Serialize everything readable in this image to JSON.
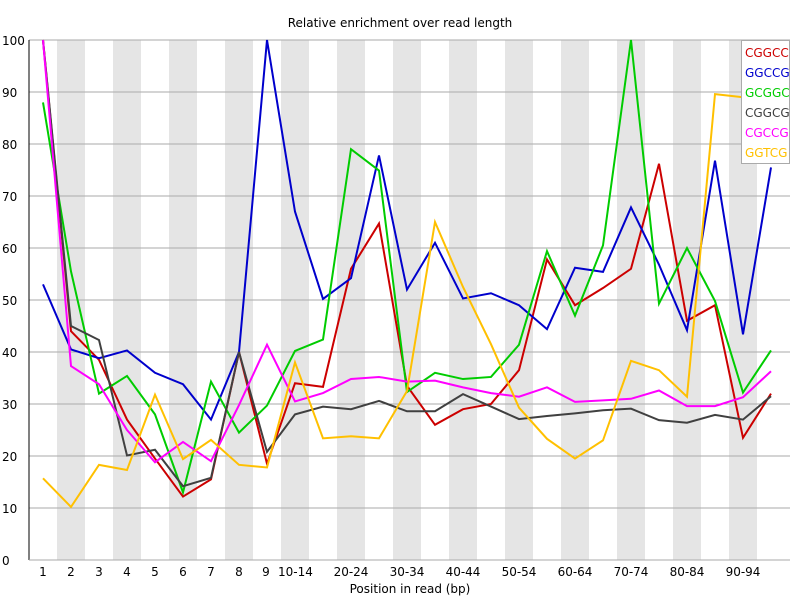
{
  "chart_data": {
    "type": "line",
    "title": "Relative enrichment over read length",
    "xlabel": "Position in read (bp)",
    "ylabel": "",
    "ylim": [
      0,
      100
    ],
    "yticks": [
      0,
      10,
      20,
      30,
      40,
      50,
      60,
      70,
      80,
      90,
      100
    ],
    "grid": true,
    "legend_position": "top-right",
    "categories": [
      "1",
      "2",
      "3",
      "4",
      "5",
      "6",
      "7",
      "8",
      "9",
      "10-14",
      "15-19",
      "20-24",
      "25-29",
      "30-34",
      "35-39",
      "40-44",
      "45-49",
      "50-54",
      "55-59",
      "60-64",
      "65-69",
      "70-74",
      "75-79",
      "80-84",
      "85-89",
      "90-94",
      "95-99"
    ],
    "visible_tick_labels": [
      "1",
      "2",
      "3",
      "4",
      "5",
      "6",
      "7",
      "8",
      "9",
      "10-14",
      "20-24",
      "30-34",
      "40-44",
      "50-54",
      "60-64",
      "70-74",
      "80-84",
      "90-94"
    ],
    "series": [
      {
        "name": "CGGCC",
        "color": "#cc0000",
        "values": [
          100,
          44,
          38.5,
          27,
          19.5,
          12.2,
          15.5,
          40,
          18.5,
          34,
          33.3,
          56,
          64.7,
          33.5,
          26,
          29,
          30,
          36.5,
          57.8,
          49,
          52.3,
          56,
          76.2,
          46,
          49,
          23.5,
          32
        ]
      },
      {
        "name": "GGCCG",
        "color": "#0000cc",
        "values": [
          53,
          40.5,
          38.8,
          40.3,
          36,
          33.8,
          27,
          40,
          100,
          67,
          50.2,
          54.2,
          77.8,
          52,
          61,
          50.3,
          51.3,
          49,
          44.4,
          56.2,
          55.4,
          67.8,
          56.8,
          44.2,
          76.8,
          43.4,
          75.5
        ]
      },
      {
        "name": "GCGGC",
        "color": "#00cc00",
        "values": [
          88,
          55.5,
          32,
          35.4,
          28,
          13,
          34.3,
          24.5,
          29.7,
          40.2,
          42.4,
          79,
          74.9,
          32.3,
          36,
          34.8,
          35.2,
          41.4,
          59.4,
          47,
          60.5,
          100,
          49.3,
          60,
          49.8,
          32.2,
          40.3
        ]
      },
      {
        "name": "CGGCG",
        "color": "#404040",
        "values": [
          100,
          45,
          42.3,
          20.1,
          21.2,
          14.2,
          15.8,
          40,
          20.8,
          28,
          29.5,
          29,
          30.6,
          28.6,
          28.6,
          31.9,
          29.5,
          27.1,
          27.7,
          28.2,
          28.8,
          29.1,
          26.9,
          26.4,
          27.9,
          27,
          31.5
        ]
      },
      {
        "name": "CGCCG",
        "color": "#ff00ff",
        "values": [
          100,
          37.3,
          33.8,
          25,
          18.8,
          22.7,
          19,
          29.8,
          41.4,
          30.5,
          32.1,
          34.8,
          35.2,
          34.3,
          34.5,
          33.2,
          32.1,
          31.4,
          33.2,
          30.4,
          30.7,
          31,
          32.6,
          29.6,
          29.6,
          31.3,
          36.3
        ]
      },
      {
        "name": "GGTCG",
        "color": "#ffc000",
        "values": [
          15.7,
          10.2,
          18.3,
          17.3,
          31.8,
          19.4,
          23.1,
          18.3,
          17.8,
          38,
          23.4,
          23.8,
          23.4,
          32.5,
          65,
          52.5,
          41.5,
          29.3,
          23.3,
          19.5,
          23,
          38.3,
          36.5,
          31.4,
          89.6,
          89,
          89.3
        ]
      }
    ]
  },
  "legend": {
    "items": [
      {
        "label": "CGGCC",
        "color": "#cc0000"
      },
      {
        "label": "GGCCG",
        "color": "#0000cc"
      },
      {
        "label": "GCGGC",
        "color": "#00cc00"
      },
      {
        "label": "CGGCG",
        "color": "#404040"
      },
      {
        "label": "CGCCG",
        "color": "#ff00ff"
      },
      {
        "label": "GGTCG",
        "color": "#ffc000"
      }
    ]
  }
}
